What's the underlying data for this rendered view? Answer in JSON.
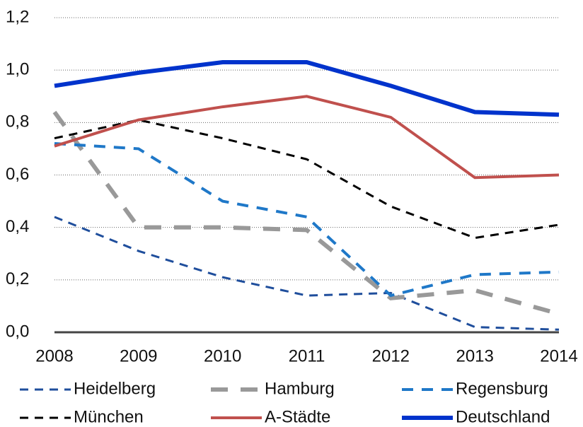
{
  "chart_data": {
    "type": "line",
    "x": [
      2008,
      2009,
      2010,
      2011,
      2012,
      2013,
      2014
    ],
    "xlim": [
      2008,
      2014
    ],
    "ylim": [
      0,
      1.2
    ],
    "yticks": [
      {
        "value": 0,
        "label": "0,0"
      },
      {
        "value": 0.2,
        "label": "0,2"
      },
      {
        "value": 0.4,
        "label": "0,4"
      },
      {
        "value": 0.6,
        "label": "0,6"
      },
      {
        "value": 0.8,
        "label": "0,8"
      },
      {
        "value": 1.0,
        "label": "1,0"
      },
      {
        "value": 1.2,
        "label": "1,2"
      }
    ],
    "grid": true,
    "legend": "bottom",
    "series": [
      {
        "name": "Heidelberg",
        "color": "#1f4e9c",
        "dash": true,
        "width": 3,
        "values": [
          0.44,
          0.31,
          0.21,
          0.14,
          0.15,
          0.02,
          0.01
        ]
      },
      {
        "name": "Hamburg",
        "color": "#999999",
        "dash": true,
        "width": 6,
        "values": [
          0.84,
          0.4,
          0.4,
          0.39,
          0.13,
          0.16,
          0.07
        ]
      },
      {
        "name": "Regensburg",
        "color": "#1f78c8",
        "dash": true,
        "width": 4,
        "values": [
          0.72,
          0.7,
          0.5,
          0.44,
          0.14,
          0.22,
          0.23
        ]
      },
      {
        "name": "München",
        "color": "#000000",
        "dash": true,
        "width": 3,
        "values": [
          0.74,
          0.81,
          0.74,
          0.66,
          0.48,
          0.36,
          0.41
        ]
      },
      {
        "name": "A-Städte",
        "color": "#c0504d",
        "dash": false,
        "width": 4,
        "values": [
          0.71,
          0.81,
          0.86,
          0.9,
          0.82,
          0.59,
          0.6
        ]
      },
      {
        "name": "Deutschland",
        "color": "#0033cc",
        "dash": false,
        "width": 6,
        "values": [
          0.94,
          0.99,
          1.03,
          1.03,
          0.94,
          0.84,
          0.83
        ]
      }
    ]
  }
}
